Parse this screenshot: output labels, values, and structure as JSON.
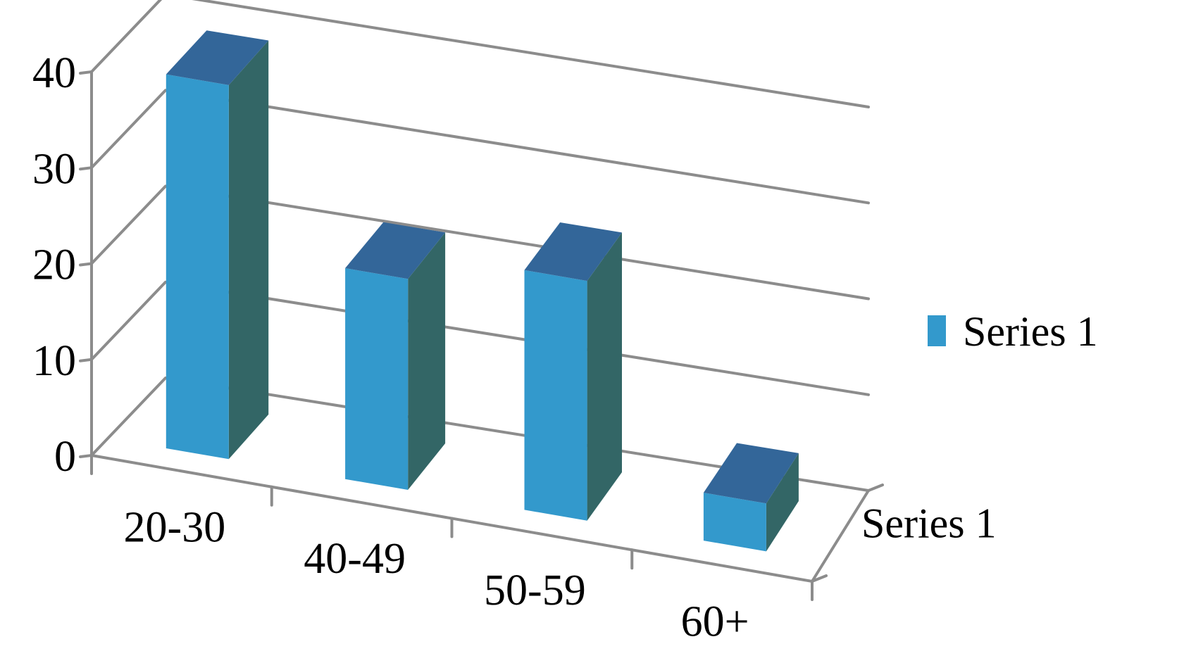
{
  "chart_data": {
    "type": "bar",
    "variant": "3d-column",
    "categories": [
      "20-30",
      "40-49",
      "50-59",
      "60+"
    ],
    "series": [
      {
        "name": "Series 1",
        "values": [
          39,
          22,
          25,
          5
        ]
      }
    ],
    "title": "",
    "xlabel": "",
    "ylabel": "",
    "ylim": [
      0,
      40
    ],
    "yticks": [
      "0",
      "10",
      "20",
      "30",
      "40"
    ],
    "depth_axis_label": "Series 1",
    "grid": true,
    "legend": {
      "position": "right",
      "entries": [
        "Series 1"
      ]
    },
    "colors": {
      "front": "#3399cc",
      "side": "#336666",
      "top": "#336699",
      "grid": "#8c8c8c"
    }
  }
}
